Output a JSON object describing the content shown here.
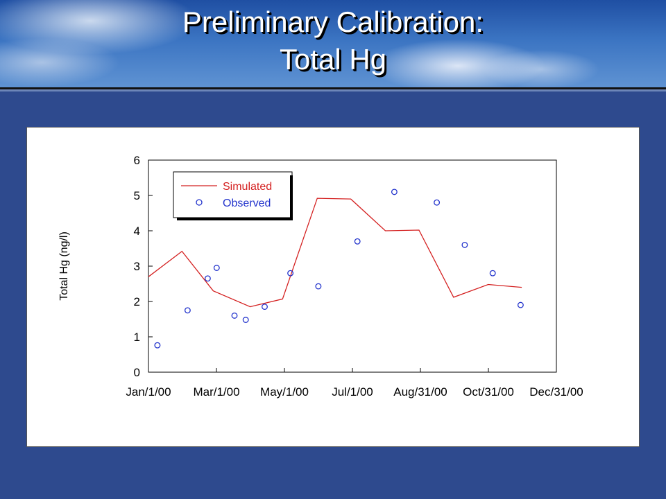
{
  "header": {
    "title_line1": "Preliminary Calibration:",
    "title_line2": "Total Hg"
  },
  "colors": {
    "simulated": "#d42020",
    "observed": "#2233cc",
    "background": "#2e4a8e"
  },
  "chart_data": {
    "type": "line",
    "xlabel": "",
    "ylabel": "Total Hg (ng/l)",
    "ylim": [
      0,
      6
    ],
    "yticks": [
      "0",
      "1",
      "2",
      "3",
      "4",
      "5",
      "6"
    ],
    "xlim": [
      "2000-01-01",
      "2000-12-31"
    ],
    "xticks": [
      "Jan/1/00",
      "Mar/1/00",
      "May/1/00",
      "Jul/1/00",
      "Aug/31/00",
      "Oct/31/00",
      "Dec/31/00"
    ],
    "grid": false,
    "legend_position": "top-left",
    "series": [
      {
        "name": "Simulated",
        "style": "line",
        "x": [
          "2000-01-01",
          "2000-01-31",
          "2000-02-28",
          "2000-04-01",
          "2000-04-30",
          "2000-05-31",
          "2000-06-30",
          "2000-07-31",
          "2000-08-30",
          "2000-09-30",
          "2000-10-31",
          "2000-11-30"
        ],
        "y": [
          2.7,
          3.42,
          2.3,
          1.85,
          2.07,
          4.92,
          4.9,
          4.0,
          4.02,
          2.12,
          2.48,
          2.4
        ]
      },
      {
        "name": "Observed",
        "style": "markers",
        "x": [
          "2000-01-09",
          "2000-02-05",
          "2000-02-23",
          "2000-03-02",
          "2000-03-18",
          "2000-03-28",
          "2000-04-14",
          "2000-05-07",
          "2000-06-01",
          "2000-07-06",
          "2000-08-08",
          "2000-09-15",
          "2000-10-10",
          "2000-11-04",
          "2000-11-29"
        ],
        "y": [
          0.76,
          1.75,
          2.65,
          2.95,
          1.6,
          1.48,
          1.85,
          2.8,
          2.43,
          3.7,
          5.1,
          4.8,
          3.6,
          2.8,
          1.9
        ]
      }
    ]
  }
}
